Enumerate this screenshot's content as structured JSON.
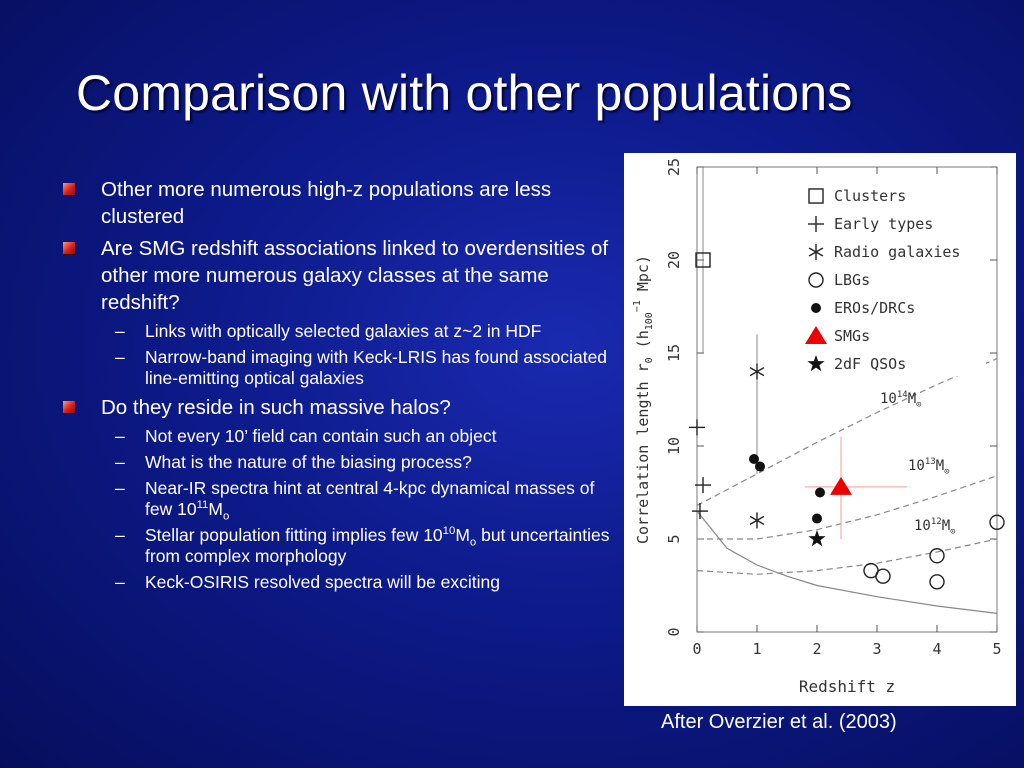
{
  "slide": {
    "title": "Comparison with other populations",
    "bullets": [
      {
        "text": "Other more numerous high-z populations are less clustered"
      },
      {
        "text": "Are SMG redshift associations linked to overdensities of other more numerous galaxy classes at the same redshift?",
        "sub": [
          {
            "text": "Links with optically selected galaxies at z~2 in HDF"
          },
          {
            "text": "Narrow-band imaging with Keck-LRIS has found associated line-emitting optical galaxies"
          }
        ]
      },
      {
        "text": "Do they reside in such massive halos?",
        "sub": [
          {
            "text": "Not every 10’ field can contain such an object"
          },
          {
            "text": "What is the nature of the biasing process?"
          },
          {
            "a": "Near-IR spectra hint at central 4-kpc dynamical masses of few 10",
            "sup": "11",
            "b": "M",
            "sub": "o",
            "c": ""
          },
          {
            "a": "Stellar population fitting implies few 10",
            "sup": "10",
            "b": "M",
            "sub": "o",
            "c": " but uncertainties from complex morphology"
          },
          {
            "text": "Keck-OSIRIS resolved spectra will be exciting"
          }
        ]
      }
    ],
    "caption": "After Overzier et al. (2003)"
  },
  "chart_data": {
    "type": "scatter",
    "xlabel": "Redshift z",
    "ylabel": "Correlation length r0 (h100^-1 Mpc)",
    "ylabel_parts": {
      "main": "Correlation length r",
      "sub0": "0",
      "open": " (h",
      "sub100": "100",
      "sup": "−1",
      "close": " Mpc)"
    },
    "xlim": [
      0,
      5
    ],
    "ylim": [
      0,
      25
    ],
    "xticks": [
      "0",
      "1",
      "2",
      "3",
      "4",
      "5"
    ],
    "yticks": [
      "0",
      "5",
      "10",
      "15",
      "20",
      "25"
    ],
    "legend_position": "top-right",
    "legend": [
      {
        "label": "Clusters",
        "marker": "open-square"
      },
      {
        "label": "Early types",
        "marker": "plus"
      },
      {
        "label": "Radio galaxies",
        "marker": "asterisk"
      },
      {
        "label": "LBGs",
        "marker": "open-circle"
      },
      {
        "label": "EROs/DRCs",
        "marker": "filled-circle"
      },
      {
        "label": "SMGs",
        "marker": "red-triangle"
      },
      {
        "label": "2dF QSOs",
        "marker": "filled-star"
      }
    ],
    "series": [
      {
        "name": "Clusters",
        "marker": "open-square",
        "points": [
          {
            "x": 0.1,
            "y": 20.0,
            "ylo": 15.0,
            "yhi": 25.0
          }
        ]
      },
      {
        "name": "Early types",
        "marker": "plus",
        "points": [
          {
            "x": 0.0,
            "y": 11.0
          },
          {
            "x": 0.1,
            "y": 7.9
          },
          {
            "x": 0.05,
            "y": 6.5
          }
        ]
      },
      {
        "name": "Radio galaxies",
        "marker": "asterisk",
        "points": [
          {
            "x": 1.0,
            "y": 14.0,
            "ylo": 8.5,
            "yhi": 16.0
          },
          {
            "x": 1.0,
            "y": 6.0
          }
        ]
      },
      {
        "name": "LBGs",
        "marker": "open-circle",
        "points": [
          {
            "x": 2.9,
            "y": 3.3
          },
          {
            "x": 3.1,
            "y": 3.0
          },
          {
            "x": 4.0,
            "y": 4.1
          },
          {
            "x": 4.0,
            "y": 2.7
          },
          {
            "x": 5.0,
            "y": 5.9
          }
        ]
      },
      {
        "name": "EROs/DRCs",
        "marker": "filled-circle",
        "points": [
          {
            "x": 0.95,
            "y": 9.3
          },
          {
            "x": 1.05,
            "y": 8.9
          },
          {
            "x": 2.05,
            "y": 7.5
          },
          {
            "x": 2.0,
            "y": 6.1
          }
        ]
      },
      {
        "name": "SMGs",
        "marker": "red-triangle",
        "points": [
          {
            "x": 2.4,
            "y": 7.8,
            "xlo": 1.8,
            "xhi": 3.5,
            "ylo": 5.0,
            "yhi": 10.5
          }
        ]
      },
      {
        "name": "2dF QSOs",
        "marker": "filled-star",
        "points": [
          {
            "x": 2.0,
            "y": 5.0
          }
        ]
      }
    ],
    "curves": [
      {
        "label": "10",
        "sup": "14",
        "unit": "M",
        "sub": "⊙",
        "style": "dashed",
        "points": [
          [
            0,
            6.8
          ],
          [
            1,
            8.5
          ],
          [
            2,
            10.2
          ],
          [
            3,
            11.8
          ],
          [
            4,
            13.3
          ],
          [
            5,
            14.7
          ]
        ]
      },
      {
        "label": "10",
        "sup": "13",
        "unit": "M",
        "sub": "⊙",
        "style": "dashed",
        "points": [
          [
            0,
            5.0
          ],
          [
            1,
            5.0
          ],
          [
            2,
            5.5
          ],
          [
            3,
            6.3
          ],
          [
            4,
            7.3
          ],
          [
            5,
            8.4
          ]
        ]
      },
      {
        "label": "10",
        "sup": "12",
        "unit": "M",
        "sub": "⊙",
        "style": "dashed",
        "points": [
          [
            0,
            3.3
          ],
          [
            1,
            3.1
          ],
          [
            2,
            3.3
          ],
          [
            3,
            3.7
          ],
          [
            4,
            4.3
          ],
          [
            5,
            5.0
          ]
        ]
      },
      {
        "label": "",
        "style": "solid",
        "points": [
          [
            0,
            6.5
          ],
          [
            0.5,
            4.5
          ],
          [
            1,
            3.6
          ],
          [
            1.5,
            3.0
          ],
          [
            2,
            2.5
          ],
          [
            3,
            1.9
          ],
          [
            4,
            1.4
          ],
          [
            5,
            1.0
          ]
        ]
      }
    ]
  }
}
